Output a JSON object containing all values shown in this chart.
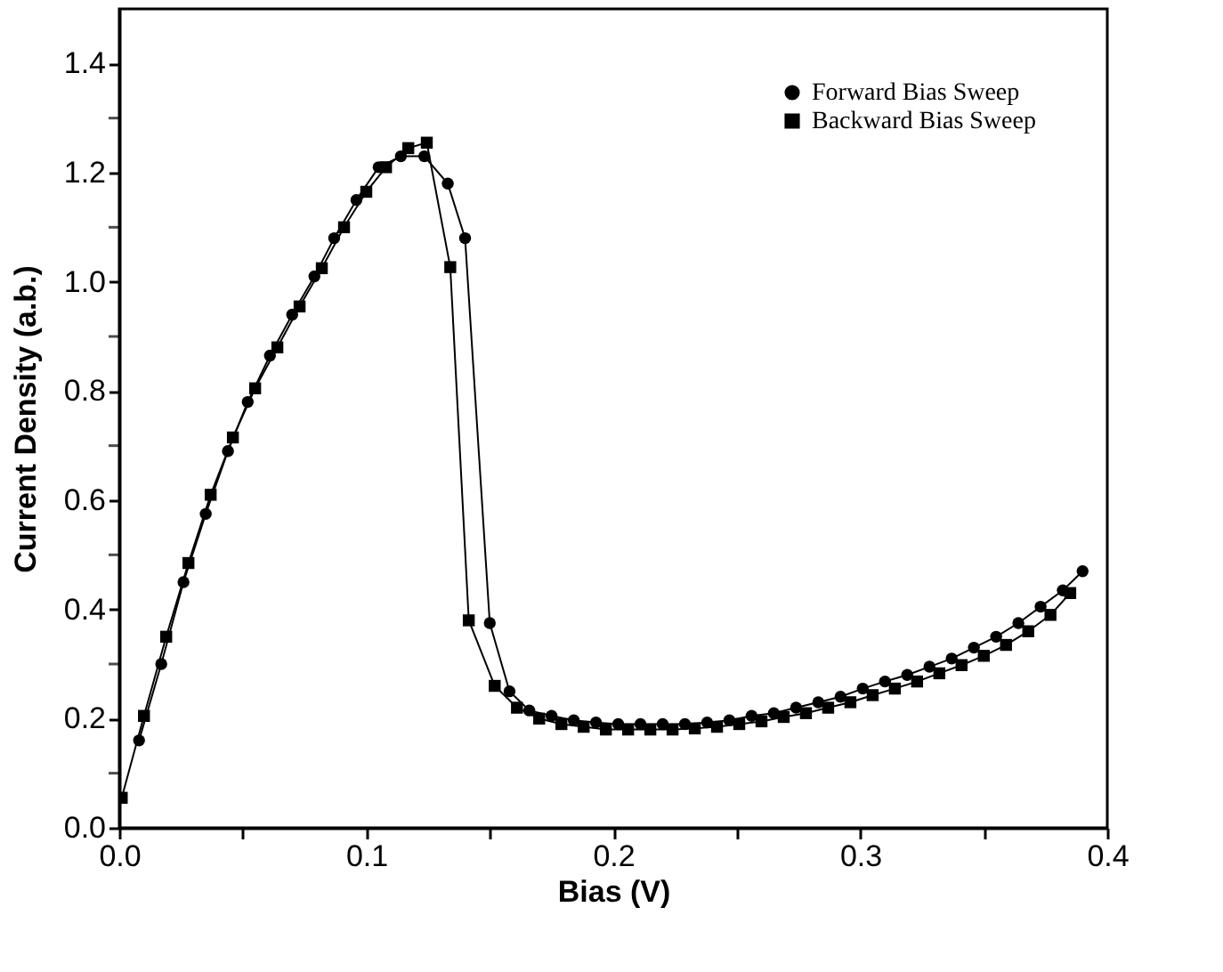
{
  "chart_data": {
    "type": "line",
    "xlabel": "Bias  (V)",
    "ylabel": "Current Density  (a.b.)",
    "xlim": [
      0,
      0.4
    ],
    "ylim": [
      0,
      1.5
    ],
    "xticks": [
      {
        "value": 0,
        "label": "0.0"
      },
      {
        "value": 0.05,
        "label": null
      },
      0.1,
      {
        "value": 0.15,
        "label": null
      },
      0.2,
      {
        "value": 0.25,
        "label": null
      },
      0.3,
      {
        "value": 0.35,
        "label": null
      },
      0.4
    ],
    "yticks": [
      {
        "value": 0,
        "label": "0.0"
      },
      {
        "value": 0.1,
        "label": null
      },
      0.2,
      {
        "value": 0.3,
        "label": null
      },
      0.4,
      {
        "value": 0.5,
        "label": null
      },
      0.6,
      {
        "value": 0.7,
        "label": null
      },
      0.8,
      {
        "value": 0.9,
        "label": null
      },
      {
        "value": 1,
        "label": "1.0"
      },
      {
        "value": 1.1,
        "label": null
      },
      1.2,
      {
        "value": 1.3,
        "label": null
      },
      1.4
    ],
    "grid": false,
    "legend": "top right",
    "line_style": "solid",
    "series": [
      {
        "name": "Forward Bias Sweep",
        "color": "#000000",
        "marker": "circle",
        "x": [
          0.008,
          0.017,
          0.026,
          0.035,
          0.044,
          0.052,
          0.061,
          0.07,
          0.079,
          0.087,
          0.096,
          0.105,
          0.114,
          0.1235,
          0.133,
          0.14,
          0.15,
          0.158,
          0.166,
          0.175,
          0.184,
          0.193,
          0.202,
          0.211,
          0.22,
          0.229,
          0.238,
          0.247,
          0.256,
          0.265,
          0.274,
          0.283,
          0.292,
          0.301,
          0.31,
          0.319,
          0.328,
          0.337,
          0.346,
          0.355,
          0.364,
          0.373,
          0.382,
          0.39
        ],
        "values": [
          0.16,
          0.3,
          0.45,
          0.575,
          0.69,
          0.78,
          0.865,
          0.94,
          1.01,
          1.08,
          1.15,
          1.21,
          1.23,
          1.23,
          1.18,
          1.08,
          0.375,
          0.25,
          0.215,
          0.205,
          0.197,
          0.193,
          0.19,
          0.19,
          0.19,
          0.19,
          0.193,
          0.197,
          0.205,
          0.21,
          0.22,
          0.23,
          0.24,
          0.255,
          0.268,
          0.28,
          0.295,
          0.31,
          0.33,
          0.35,
          0.375,
          0.405,
          0.435,
          0.47
        ]
      },
      {
        "name": "Backward Bias Sweep",
        "color": "#000000",
        "marker": "square",
        "x": [
          0.001,
          0.01,
          0.019,
          0.028,
          0.037,
          0.046,
          0.055,
          0.064,
          0.073,
          0.082,
          0.091,
          0.1,
          0.108,
          0.117,
          0.1245,
          0.134,
          0.1415,
          0.152,
          0.161,
          0.17,
          0.179,
          0.188,
          0.197,
          0.206,
          0.215,
          0.224,
          0.233,
          0.242,
          0.251,
          0.26,
          0.269,
          0.278,
          0.287,
          0.296,
          0.305,
          0.314,
          0.323,
          0.332,
          0.341,
          0.35,
          0.359,
          0.368,
          0.377,
          0.385
        ],
        "values": [
          0.055,
          0.205,
          0.35,
          0.485,
          0.61,
          0.715,
          0.805,
          0.88,
          0.955,
          1.025,
          1.1,
          1.165,
          1.21,
          1.245,
          1.255,
          1.027,
          0.38,
          0.26,
          0.22,
          0.2,
          0.19,
          0.185,
          0.18,
          0.18,
          0.18,
          0.18,
          0.182,
          0.185,
          0.19,
          0.195,
          0.203,
          0.21,
          0.22,
          0.23,
          0.243,
          0.255,
          0.268,
          0.283,
          0.298,
          0.315,
          0.335,
          0.36,
          0.39,
          0.43
        ]
      }
    ]
  }
}
